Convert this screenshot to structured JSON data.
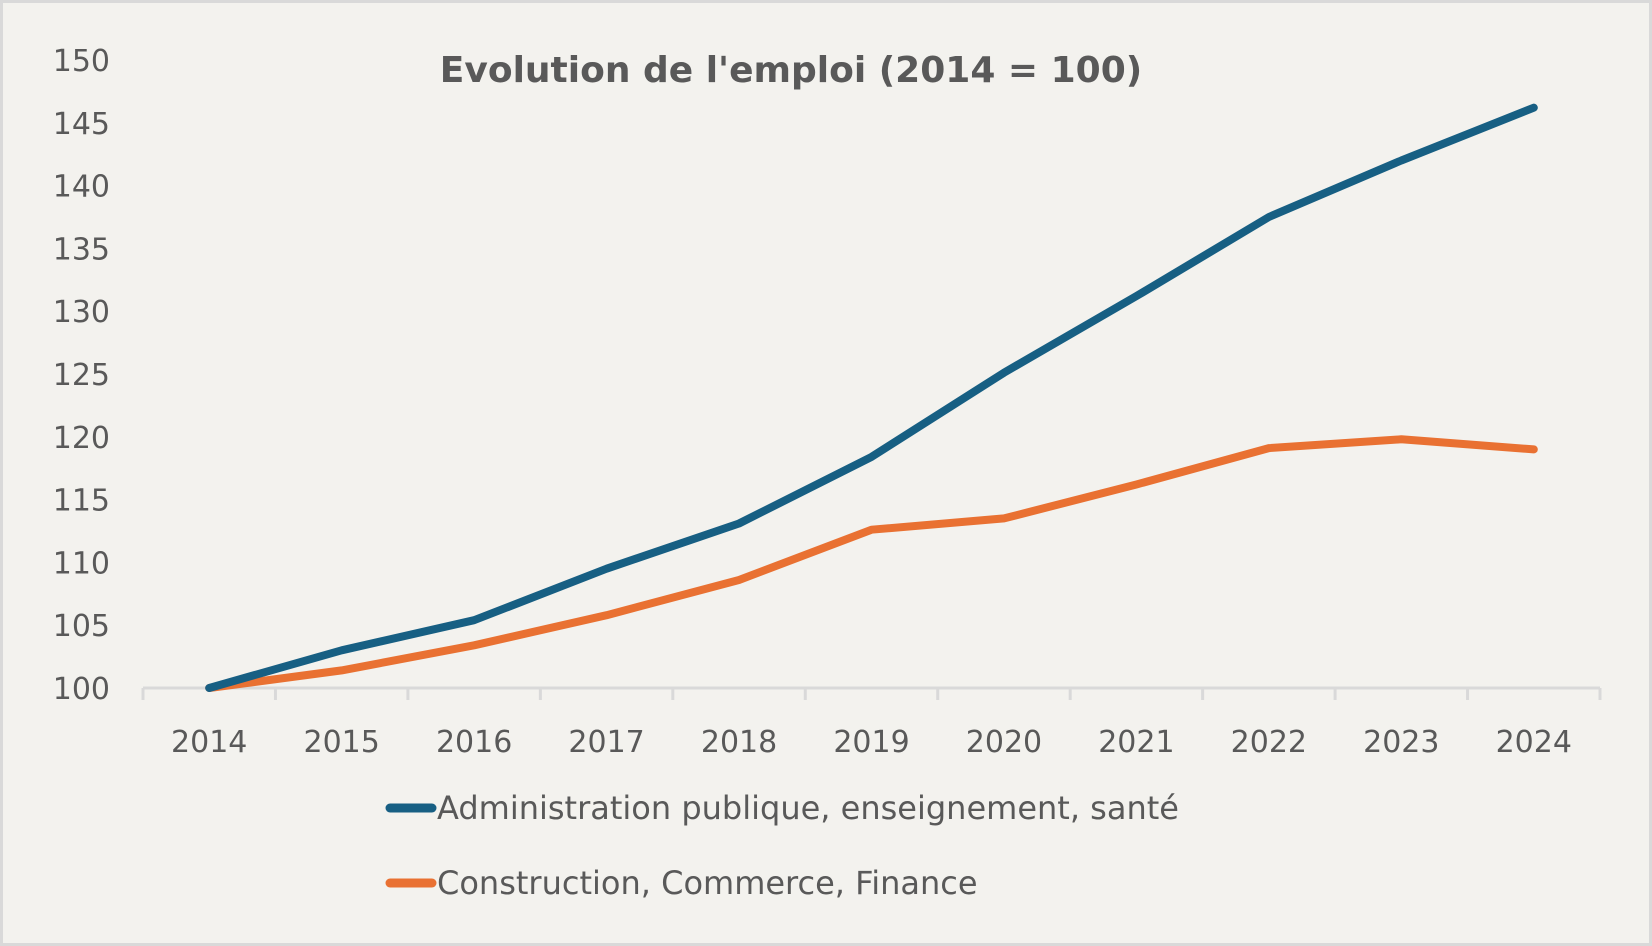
{
  "chart_data": {
    "type": "line",
    "title": "Evolution de l'emploi (2014 = 100)",
    "xlabel": "",
    "ylabel": "",
    "categories": [
      "2014",
      "2015",
      "2016",
      "2017",
      "2018",
      "2019",
      "2020",
      "2021",
      "2022",
      "2023",
      "2024"
    ],
    "y_ticks": [
      "100",
      "105",
      "110",
      "115",
      "120",
      "125",
      "130",
      "135",
      "140",
      "145",
      "150"
    ],
    "ylim": [
      100,
      150
    ],
    "grid": false,
    "legend_position": "bottom",
    "series": [
      {
        "name": "Administration publique, enseignement, santé",
        "color": "#175f83",
        "values": [
          100,
          103.0,
          105.4,
          109.5,
          113.1,
          118.4,
          125.1,
          131.2,
          137.5,
          142.0,
          146.2
        ]
      },
      {
        "name": "Construction, Commerce, Finance",
        "color": "#e97132",
        "values": [
          100,
          101.4,
          103.4,
          105.8,
          108.6,
          112.6,
          113.5,
          116.2,
          119.1,
          119.8,
          119.0
        ]
      }
    ]
  },
  "colors": {
    "background": "#f3f2ee",
    "axis": "#d9d9d9",
    "text": "#595959"
  }
}
